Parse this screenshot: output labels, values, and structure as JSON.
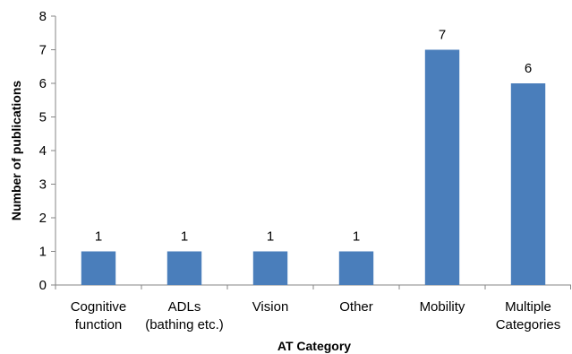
{
  "chart_data": {
    "type": "bar",
    "categories": [
      [
        "Cognitive",
        "function"
      ],
      [
        "ADLs",
        "(bathing etc.)"
      ],
      [
        "Vision"
      ],
      [
        "Other"
      ],
      [
        "Mobility"
      ],
      [
        "Multiple",
        "Categories"
      ]
    ],
    "values": [
      1,
      1,
      1,
      1,
      7,
      6
    ],
    "data_labels": [
      "1",
      "1",
      "1",
      "1",
      "7",
      "6"
    ],
    "yticks": [
      0,
      1,
      2,
      3,
      4,
      5,
      6,
      7,
      8
    ],
    "ylim": [
      0,
      8
    ],
    "xlabel": "AT Category",
    "ylabel": "Number of publications",
    "grid": false,
    "legend": "none",
    "bar_color": "#4a7ebb"
  }
}
